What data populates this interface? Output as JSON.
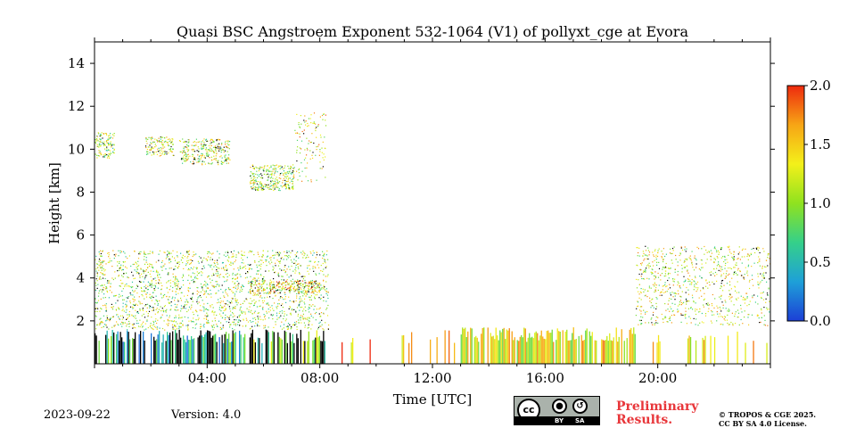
{
  "chart_data": {
    "type": "heatmap",
    "title": "Quasi BSC Angstroem Exponent 532-1064 (V1) of pollyxt_cge at Evora",
    "xlabel": "Time [UTC]",
    "ylabel": "Height [km]",
    "xlim": [
      0,
      24
    ],
    "ylim": [
      0,
      15
    ],
    "x_ticks": [
      {
        "value": 4,
        "label": "04:00"
      },
      {
        "value": 8,
        "label": "08:00"
      },
      {
        "value": 12,
        "label": "12:00"
      },
      {
        "value": 16,
        "label": "16:00"
      },
      {
        "value": 20,
        "label": "20:00"
      }
    ],
    "y_ticks": [
      {
        "value": 2,
        "label": "2"
      },
      {
        "value": 4,
        "label": "4"
      },
      {
        "value": 6,
        "label": "6"
      },
      {
        "value": 8,
        "label": "8"
      },
      {
        "value": 10,
        "label": "10"
      },
      {
        "value": 12,
        "label": "12"
      },
      {
        "value": 14,
        "label": "14"
      }
    ],
    "colorbar": {
      "range": [
        0,
        2
      ],
      "ticks": [
        {
          "value": 0,
          "label": "0.0"
        },
        {
          "value": 0.5,
          "label": "0.5"
        },
        {
          "value": 1,
          "label": "1.0"
        },
        {
          "value": 1.5,
          "label": "1.5"
        },
        {
          "value": 2,
          "label": "2.0"
        }
      ],
      "colormap": [
        "#1c3fd6",
        "#1ea0d8",
        "#35d08a",
        "#8fe21f",
        "#f3f01a",
        "#f7a515",
        "#ee2a0e"
      ]
    },
    "regions": [
      {
        "name": "cirrus-1",
        "t0": 0.0,
        "t1": 0.7,
        "h0": 9.6,
        "h1": 10.8,
        "value": 1.1,
        "density": 0.55
      },
      {
        "name": "cirrus-2",
        "t0": 1.8,
        "t1": 2.8,
        "h0": 9.7,
        "h1": 10.6,
        "value": 1.2,
        "density": 0.55
      },
      {
        "name": "cirrus-3",
        "t0": 3.0,
        "t1": 4.8,
        "h0": 9.3,
        "h1": 10.5,
        "value": 1.2,
        "density": 0.5
      },
      {
        "name": "cirrus-4",
        "t0": 5.5,
        "t1": 7.1,
        "h0": 8.1,
        "h1": 9.3,
        "value": 1.1,
        "density": 0.6
      },
      {
        "name": "cirrus-5",
        "t0": 7.1,
        "t1": 8.2,
        "h0": 8.5,
        "h1": 11.8,
        "value": 1.3,
        "density": 0.12
      },
      {
        "name": "aerosol-morning",
        "t0": 0.0,
        "t1": 8.3,
        "h0": 1.6,
        "h1": 5.3,
        "value": 1.1,
        "density": 0.25
      },
      {
        "name": "aerosol-layer",
        "t0": 5.5,
        "t1": 8.0,
        "h0": 3.3,
        "h1": 3.9,
        "value": 1.4,
        "density": 0.6
      },
      {
        "name": "boundary-morning",
        "t0": 0.0,
        "t1": 5.5,
        "h0": 0.0,
        "h1": 1.6,
        "value": 0.6,
        "density": 0.8
      },
      {
        "name": "boundary-late-morning",
        "t0": 5.5,
        "t1": 8.2,
        "h0": 0.0,
        "h1": 1.6,
        "value": 0.9,
        "density": 0.7
      },
      {
        "name": "boundary-midday",
        "t0": 8.2,
        "t1": 13.0,
        "h0": 0.0,
        "h1": 1.6,
        "value": 1.6,
        "density": 0.15
      },
      {
        "name": "boundary-afternoon",
        "t0": 13.0,
        "t1": 19.2,
        "h0": 0.0,
        "h1": 1.7,
        "value": 1.3,
        "density": 0.85
      },
      {
        "name": "aerosol-evening",
        "t0": 19.2,
        "t1": 24.0,
        "h0": 1.8,
        "h1": 5.5,
        "value": 1.2,
        "density": 0.18
      },
      {
        "name": "boundary-evening",
        "t0": 19.2,
        "t1": 24.0,
        "h0": 0.0,
        "h1": 1.6,
        "value": 1.3,
        "density": 0.12
      }
    ]
  },
  "footer": {
    "date": "2023-09-22",
    "version": "Version: 4.0",
    "preliminary_line1": "Preliminary",
    "preliminary_line2": "Results.",
    "copyright_line1": "© TROPOS & CGE 2025.",
    "copyright_line2": "CC BY SA 4.0 License.",
    "cc_badge_text": "cc",
    "cc_by": "BY",
    "cc_sa": "SA"
  }
}
